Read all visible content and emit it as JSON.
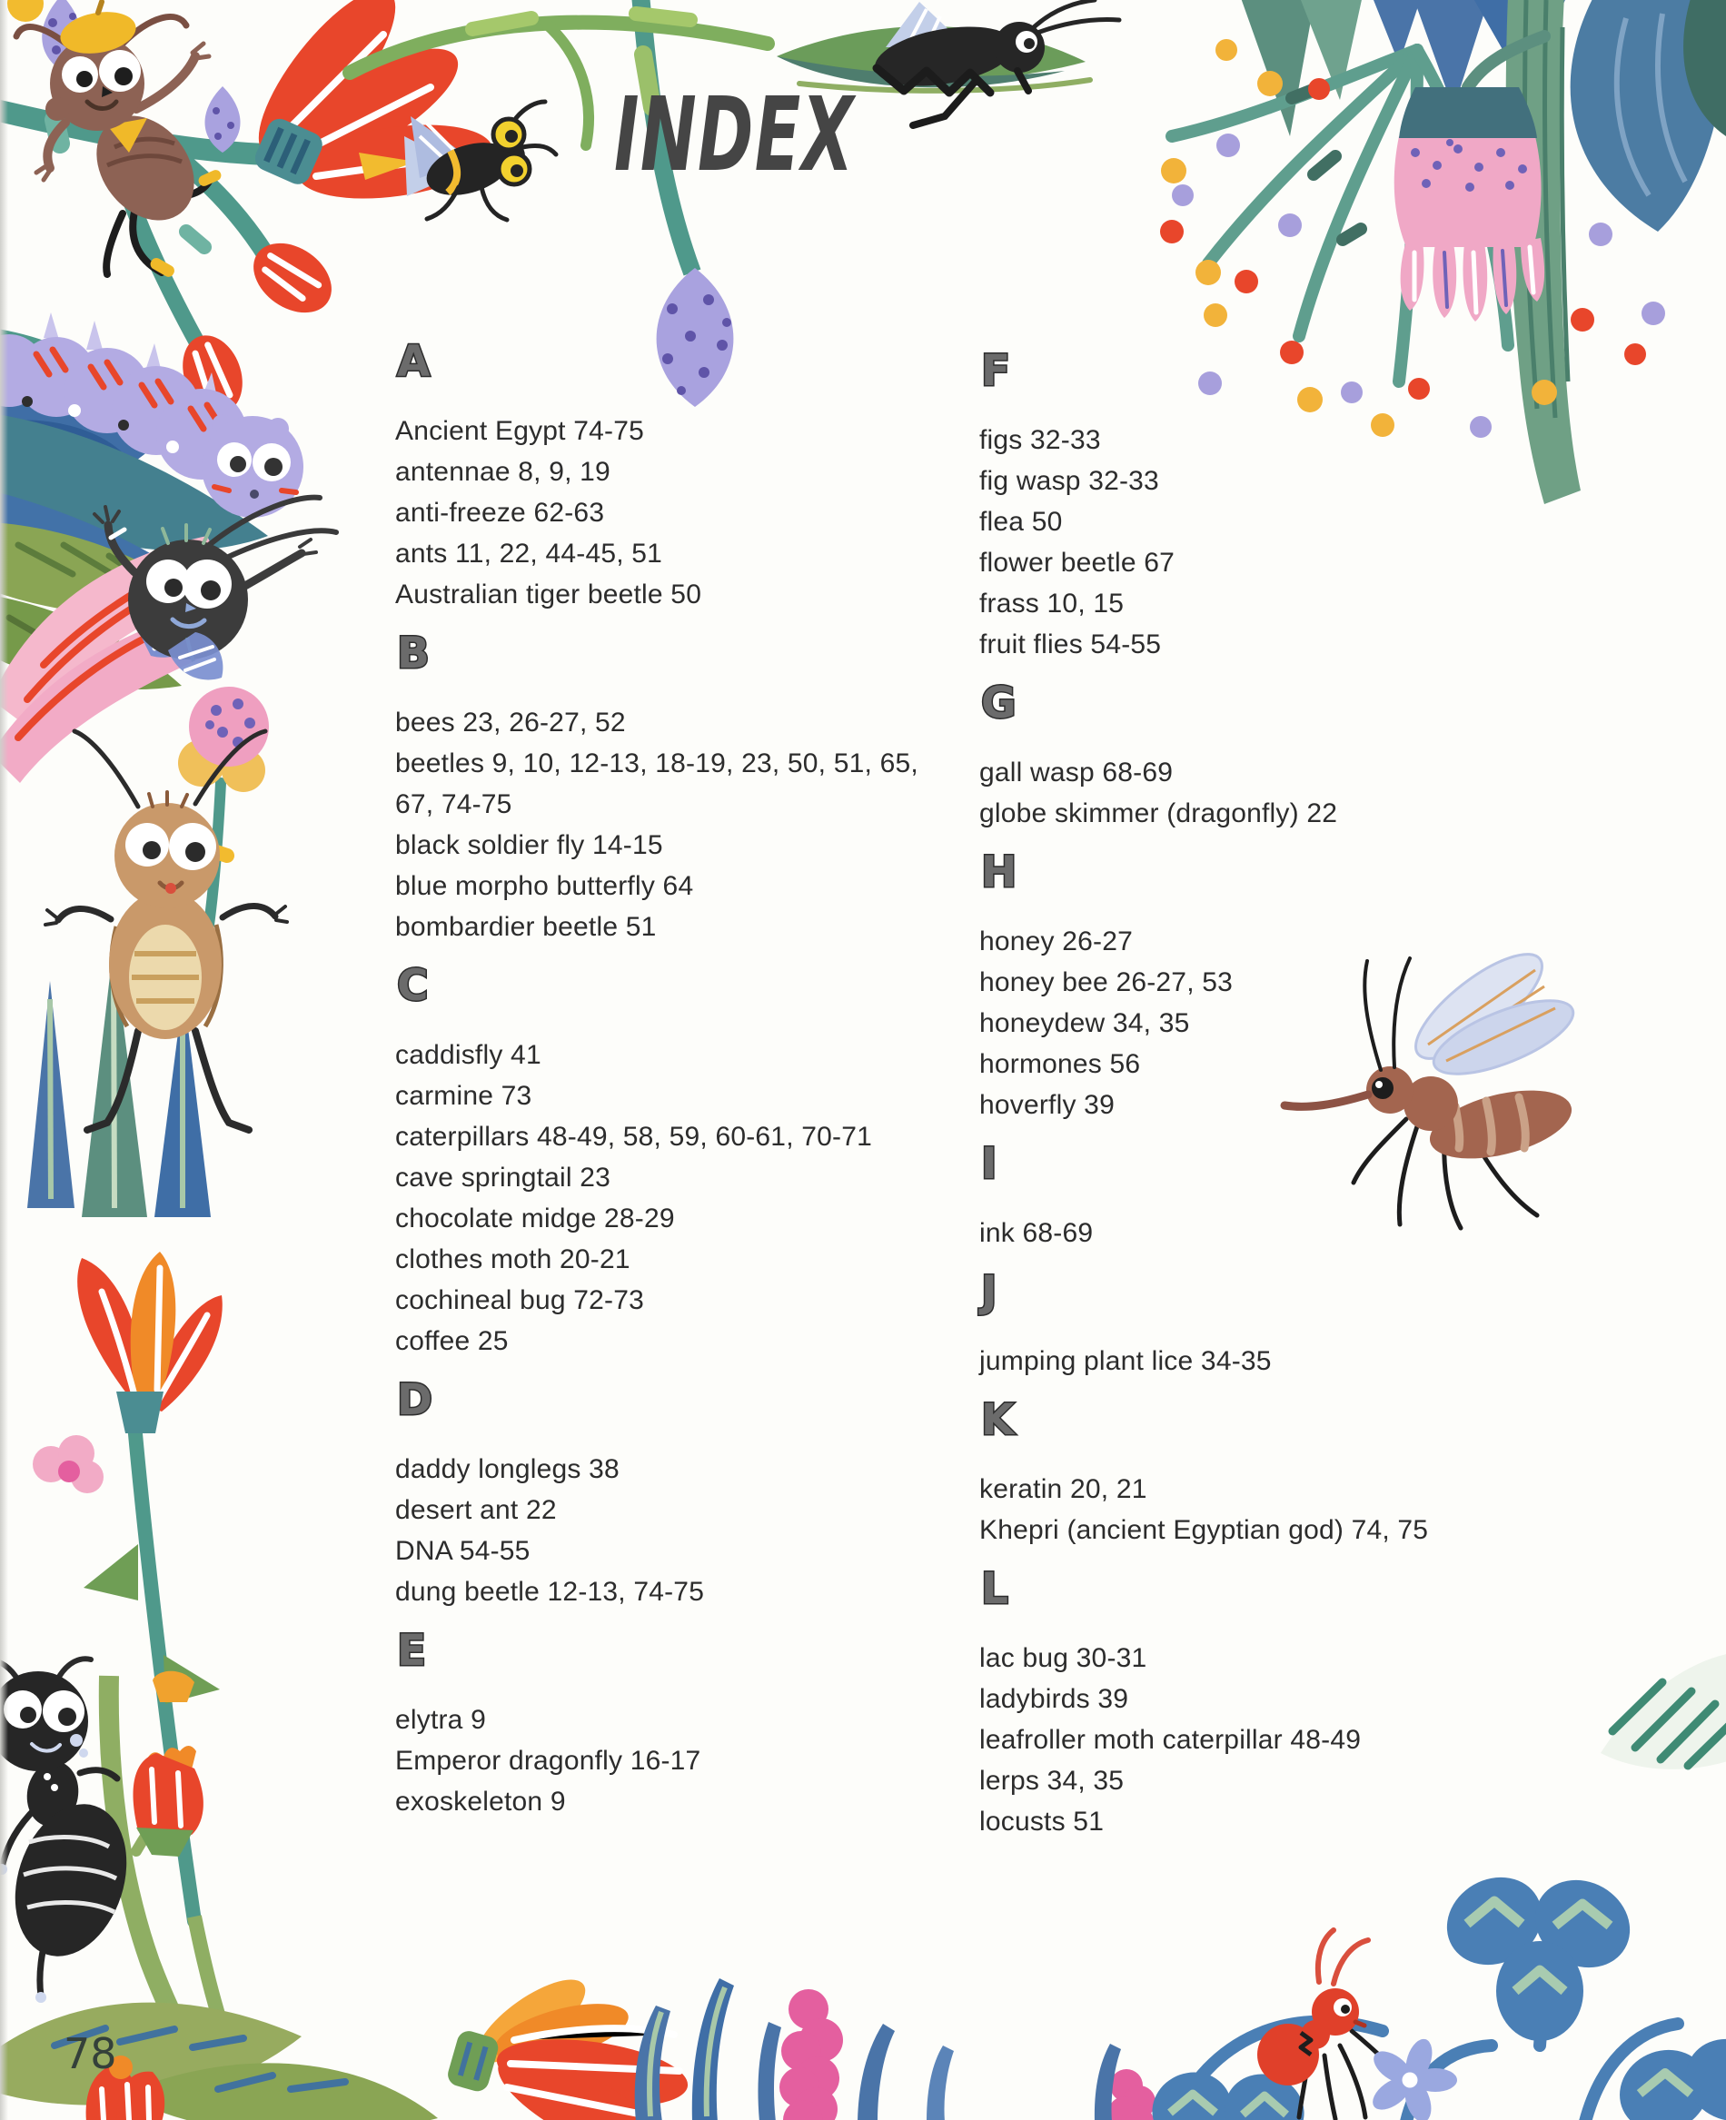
{
  "page": {
    "title": "INDEX",
    "page_number": "78",
    "background_color": "#fdfdfa",
    "text_color": "#2c2c2c",
    "heading_color": "#6b6b6b",
    "title_color": "#454545"
  },
  "index": {
    "left_sections": [
      {
        "letter": "A",
        "entries": [
          "Ancient Egypt 74-75",
          "antennae 8, 9, 19",
          "anti-freeze 62-63",
          "ants 11, 22, 44-45, 51",
          "Australian tiger beetle 50"
        ]
      },
      {
        "letter": "B",
        "entries": [
          "bees 23, 26-27, 52",
          "beetles 9, 10, 12-13, 18-19, 23, 50, 51, 65,",
          "67, 74-75",
          "black soldier fly 14-15",
          "blue morpho butterfly 64",
          "bombardier beetle 51"
        ]
      },
      {
        "letter": "C",
        "entries": [
          "caddisfly 41",
          "carmine 73",
          "caterpillars 48-49, 58, 59, 60-61, 70-71",
          "cave springtail 23",
          "chocolate midge 28-29",
          "clothes moth 20-21",
          "cochineal bug 72-73",
          "coffee 25"
        ]
      },
      {
        "letter": "D",
        "entries": [
          "daddy longlegs 38",
          "desert ant 22",
          "DNA 54-55",
          "dung beetle 12-13, 74-75"
        ]
      },
      {
        "letter": "E",
        "entries": [
          "elytra 9",
          "Emperor dragonfly 16-17",
          "exoskeleton 9"
        ]
      }
    ],
    "right_sections": [
      {
        "letter": "F",
        "entries": [
          "figs 32-33",
          "fig wasp 32-33",
          "flea 50",
          "flower beetle 67",
          "frass 10, 15",
          "fruit flies 54-55"
        ]
      },
      {
        "letter": "G",
        "entries": [
          "gall wasp 68-69",
          "globe skimmer (dragonfly) 22"
        ]
      },
      {
        "letter": "H",
        "entries": [
          "honey 26-27",
          "honey bee 26-27, 53",
          "honeydew 34, 35",
          "hormones 56",
          "hoverfly 39"
        ]
      },
      {
        "letter": "I",
        "entries": [
          "ink 68-69"
        ]
      },
      {
        "letter": "J",
        "entries": [
          "jumping plant lice 34-35"
        ]
      },
      {
        "letter": "K",
        "entries": [
          "keratin 20, 21",
          "Khepri (ancient Egyptian god) 74, 75"
        ]
      },
      {
        "letter": "L",
        "entries": [
          "lac bug 30-31",
          "ladybirds 39",
          "leafroller moth caterpillar 48-49",
          "lerps 34, 35",
          "locusts 51"
        ]
      }
    ]
  },
  "decorations": {
    "items": [
      "brown-ant-with-beret",
      "black-fly-yellow-goggles",
      "cricket-on-leaf",
      "dotted-flower-spray",
      "pink-coneflower",
      "purple-caterpillar",
      "black-bug-on-pink-flower",
      "berry-flower",
      "tan-cricket",
      "red-fan-flower",
      "black-ant-climbing-stem",
      "orange-tulip",
      "leaf-with-page-number",
      "sideways-red-flower",
      "blue-grass",
      "pink-flower-spikes",
      "red-ant-with-pinwheel-flower",
      "blue-clover-leaves",
      "mosquito",
      "striped-leaf-fragment"
    ],
    "palette": {
      "teal": "#4f998b",
      "vine_green": "#7fae5e",
      "olive": "#8fae63",
      "leaf_green": "#6f9e55",
      "dark_green": "#52805e",
      "blue_leaf": "#4a74a8",
      "slate_blue": "#4c7ca3",
      "red": "#e8462b",
      "orange": "#f08a28",
      "yellow": "#f2bb2f",
      "lavender": "#a9a2df",
      "purple": "#6f62b8",
      "pink": "#f2abc6",
      "hot_pink": "#e45f9f",
      "brown": "#8d6254",
      "tan": "#c9996a",
      "ink_black": "#2b2b2b",
      "wing_blue": "#c3cfe9",
      "clover_green": "#a8cbb0"
    }
  }
}
